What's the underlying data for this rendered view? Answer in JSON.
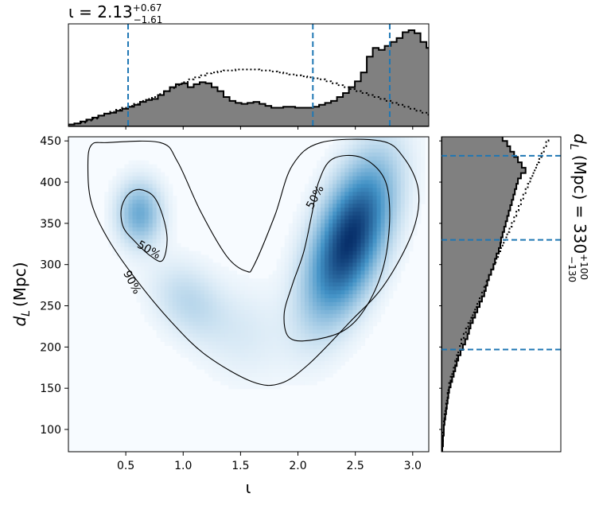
{
  "colors": {
    "hist_fill": "#808080",
    "hist_edge": "#000000",
    "quantile_line": "#1f77b4",
    "density_low": "#f7fbff",
    "density_high": "#08306b",
    "contour": "#000000"
  },
  "chart_data": [
    {
      "id": "joint",
      "type": "heatmap",
      "description_kind": "2d-density-with-contours",
      "xlabel": "ι",
      "ylabel_main": "d",
      "ylabel_sub": "L",
      "ylabel_unit": "(Mpc)",
      "xlim": [
        0.0,
        3.14
      ],
      "ylim": [
        73,
        455
      ],
      "xticks": [
        "0.5",
        "1.0",
        "1.5",
        "2.0",
        "2.5",
        "3.0"
      ],
      "xtick_values": [
        0.5,
        1.0,
        1.5,
        2.0,
        2.5,
        3.0
      ],
      "yticks": [
        "100",
        "150",
        "200",
        "250",
        "300",
        "350",
        "400",
        "450"
      ],
      "ytick_values": [
        100,
        150,
        200,
        250,
        300,
        350,
        400,
        450
      ],
      "contour_labels": [
        "50%",
        "90%",
        "50%"
      ],
      "contours": {
        "c90": [
          [
            0.34,
            448
          ],
          [
            0.2,
            445
          ],
          [
            0.17,
            420
          ],
          [
            0.2,
            375
          ],
          [
            0.35,
            330
          ],
          [
            0.6,
            280
          ],
          [
            0.9,
            230
          ],
          [
            1.2,
            190
          ],
          [
            1.6,
            158
          ],
          [
            1.85,
            156
          ],
          [
            2.1,
            180
          ],
          [
            2.45,
            230
          ],
          [
            2.75,
            275
          ],
          [
            3.0,
            340
          ],
          [
            3.05,
            390
          ],
          [
            2.92,
            430
          ],
          [
            2.72,
            450
          ],
          [
            2.2,
            448
          ],
          [
            1.95,
            420
          ],
          [
            1.8,
            360
          ],
          [
            1.62,
            300
          ],
          [
            1.55,
            292
          ],
          [
            1.38,
            310
          ],
          [
            1.15,
            365
          ],
          [
            0.95,
            425
          ],
          [
            0.8,
            448
          ]
        ],
        "c50_left": [
          [
            0.46,
            367
          ],
          [
            0.52,
            385
          ],
          [
            0.62,
            391
          ],
          [
            0.74,
            383
          ],
          [
            0.82,
            360
          ],
          [
            0.86,
            330
          ],
          [
            0.82,
            305
          ],
          [
            0.72,
            310
          ],
          [
            0.58,
            328
          ],
          [
            0.48,
            345
          ]
        ],
        "c50_right": [
          [
            2.3,
            428
          ],
          [
            2.55,
            430
          ],
          [
            2.75,
            405
          ],
          [
            2.8,
            360
          ],
          [
            2.75,
            300
          ],
          [
            2.6,
            250
          ],
          [
            2.4,
            220
          ],
          [
            2.1,
            208
          ],
          [
            1.92,
            212
          ],
          [
            1.88,
            240
          ],
          [
            1.95,
            275
          ],
          [
            2.05,
            315
          ],
          [
            2.12,
            360
          ],
          [
            2.18,
            400
          ]
        ]
      },
      "density_components": [
        {
          "mx": 2.45,
          "my": 330,
          "sx": 0.24,
          "sy": 62,
          "rho": 0.55,
          "w": 1.0
        },
        {
          "mx": 0.62,
          "my": 362,
          "sx": 0.13,
          "sy": 26,
          "rho": 0.0,
          "w": 0.42
        },
        {
          "mx": 1.05,
          "my": 255,
          "sx": 0.22,
          "sy": 32,
          "rho": -0.3,
          "w": 0.18
        },
        {
          "mx": 1.55,
          "my": 215,
          "sx": 0.25,
          "sy": 40,
          "rho": 0.0,
          "w": 0.08
        }
      ]
    },
    {
      "id": "marginal_iota",
      "type": "bar",
      "title_prefix": "ι = 2.13",
      "title_sup": "+0.67",
      "title_sub": "−1.61",
      "xlim": [
        0.0,
        3.14
      ],
      "quantiles": [
        0.52,
        2.13,
        2.8
      ],
      "bin_start": 0.0,
      "bin_width": 0.052,
      "posterior": [
        2,
        3,
        5,
        7,
        9,
        11,
        13,
        14,
        16,
        18,
        20,
        22,
        25,
        27,
        28,
        32,
        36,
        40,
        43,
        44,
        40,
        43,
        45,
        44,
        40,
        36,
        30,
        26,
        24,
        23,
        24,
        25,
        23,
        21,
        19,
        19,
        20,
        20,
        19,
        19,
        19,
        20,
        22,
        24,
        26,
        30,
        34,
        40,
        46,
        55,
        71,
        80,
        78,
        82,
        86,
        90,
        96,
        98,
        95,
        86,
        80,
        72,
        66,
        55,
        48,
        40,
        32,
        26,
        20,
        15
      ],
      "prior": [
        2,
        3,
        4,
        6,
        8,
        11,
        13,
        15,
        17,
        19,
        21,
        23,
        26,
        28,
        30,
        33,
        36,
        39,
        42,
        45,
        48,
        50,
        52,
        54,
        55,
        56,
        57,
        57,
        58,
        58,
        58,
        58,
        57,
        57,
        56,
        55,
        54,
        53,
        52,
        51,
        50,
        49,
        48,
        46,
        44,
        42,
        40,
        38,
        36,
        34,
        32,
        30,
        28,
        26,
        24,
        22,
        20,
        18,
        16,
        14,
        12,
        10,
        9,
        8,
        6,
        5,
        4,
        3,
        2,
        1
      ]
    },
    {
      "id": "marginal_dl",
      "type": "bar",
      "side_prefix": "d",
      "side_sub_l": "L",
      "side_mid": " (Mpc) = 330",
      "side_sup": "+100",
      "side_sub": "−130",
      "ylim": [
        73,
        455
      ],
      "quantiles": [
        197,
        330,
        432
      ],
      "bin_start": 73,
      "bin_width": 6.5,
      "posterior": [
        1,
        2,
        2,
        3,
        3,
        4,
        5,
        6,
        7,
        8,
        9,
        10,
        12,
        14,
        16,
        18,
        20,
        22,
        25,
        28,
        31,
        34,
        36,
        38,
        41,
        44,
        47,
        50,
        53,
        56,
        58,
        60,
        62,
        65,
        68,
        70,
        72,
        75,
        77,
        78,
        80,
        82,
        84,
        86,
        88,
        90,
        92,
        94,
        96,
        98,
        100,
        104,
        110,
        105,
        100,
        95,
        90,
        86,
        80,
        70,
        60,
        50,
        40
      ],
      "prior": [
        1,
        1,
        2,
        2,
        3,
        3,
        4,
        5,
        6,
        7,
        8,
        9,
        10,
        12,
        14,
        16,
        18,
        20,
        22,
        24,
        26,
        29,
        32,
        35,
        38,
        41,
        44,
        47,
        50,
        53,
        56,
        59,
        62,
        65,
        68,
        71,
        74,
        77,
        80,
        83,
        86,
        89,
        92,
        95,
        98,
        101,
        104,
        107,
        110,
        113,
        116,
        119,
        122,
        125,
        128,
        131,
        134,
        137,
        140,
        143,
        146,
        149,
        152
      ]
    }
  ]
}
